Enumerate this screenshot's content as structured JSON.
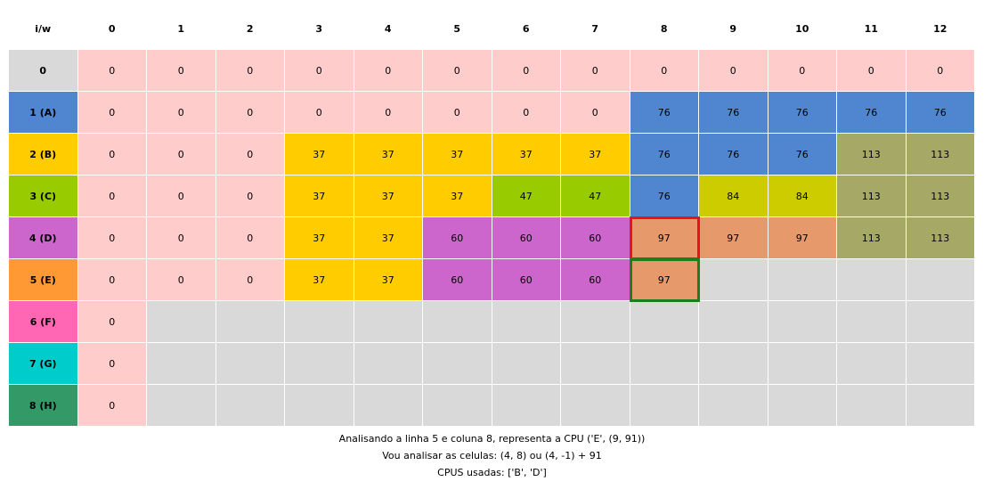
{
  "corner_label": "i/w",
  "col_headers": [
    "0",
    "1",
    "2",
    "3",
    "4",
    "5",
    "6",
    "7",
    "8",
    "9",
    "10",
    "11",
    "12"
  ],
  "row_labels": [
    "0",
    "1 (A)",
    "2 (B)",
    "3 (C)",
    "4 (D)",
    "5 (E)",
    "6 (F)",
    "7 (G)",
    "8 (H)"
  ],
  "row_label_colors": [
    "#d9d9d9",
    "#4f86cf",
    "#ffcc00",
    "#99cc00",
    "#cc66cc",
    "#ff9933",
    "#ff66b3",
    "#00cccc",
    "#339966"
  ],
  "rows": [
    {
      "values": [
        "0",
        "0",
        "0",
        "0",
        "0",
        "0",
        "0",
        "0",
        "0",
        "0",
        "0",
        "0",
        "0"
      ],
      "colors": [
        "#ffcccc",
        "#ffcccc",
        "#ffcccc",
        "#ffcccc",
        "#ffcccc",
        "#ffcccc",
        "#ffcccc",
        "#ffcccc",
        "#ffcccc",
        "#ffcccc",
        "#ffcccc",
        "#ffcccc",
        "#ffcccc"
      ]
    },
    {
      "values": [
        "0",
        "0",
        "0",
        "0",
        "0",
        "0",
        "0",
        "0",
        "76",
        "76",
        "76",
        "76",
        "76"
      ],
      "colors": [
        "#ffcccc",
        "#ffcccc",
        "#ffcccc",
        "#ffcccc",
        "#ffcccc",
        "#ffcccc",
        "#ffcccc",
        "#ffcccc",
        "#4f86cf",
        "#4f86cf",
        "#4f86cf",
        "#4f86cf",
        "#4f86cf"
      ]
    },
    {
      "values": [
        "0",
        "0",
        "0",
        "37",
        "37",
        "37",
        "37",
        "37",
        "76",
        "76",
        "76",
        "113",
        "113"
      ],
      "colors": [
        "#ffcccc",
        "#ffcccc",
        "#ffcccc",
        "#ffcc00",
        "#ffcc00",
        "#ffcc00",
        "#ffcc00",
        "#ffcc00",
        "#4f86cf",
        "#4f86cf",
        "#4f86cf",
        "#a6a866",
        "#a6a866"
      ]
    },
    {
      "values": [
        "0",
        "0",
        "0",
        "37",
        "37",
        "37",
        "47",
        "47",
        "76",
        "84",
        "84",
        "113",
        "113"
      ],
      "colors": [
        "#ffcccc",
        "#ffcccc",
        "#ffcccc",
        "#ffcc00",
        "#ffcc00",
        "#ffcc00",
        "#99cc00",
        "#99cc00",
        "#4f86cf",
        "#cccc00",
        "#cccc00",
        "#a6a866",
        "#a6a866"
      ]
    },
    {
      "values": [
        "0",
        "0",
        "0",
        "37",
        "37",
        "60",
        "60",
        "60",
        "97",
        "97",
        "97",
        "113",
        "113"
      ],
      "colors": [
        "#ffcccc",
        "#ffcccc",
        "#ffcccc",
        "#ffcc00",
        "#ffcc00",
        "#cc66cc",
        "#cc66cc",
        "#cc66cc",
        "#e6996b",
        "#e6996b",
        "#e6996b",
        "#a6a866",
        "#a6a866"
      ]
    },
    {
      "values": [
        "0",
        "0",
        "0",
        "37",
        "37",
        "60",
        "60",
        "60",
        "97",
        "",
        "",
        "",
        ""
      ],
      "colors": [
        "#ffcccc",
        "#ffcccc",
        "#ffcccc",
        "#ffcc00",
        "#ffcc00",
        "#cc66cc",
        "#cc66cc",
        "#cc66cc",
        "#e6996b",
        "#d9d9d9",
        "#d9d9d9",
        "#d9d9d9",
        "#d9d9d9"
      ]
    },
    {
      "values": [
        "0",
        "",
        "",
        "",
        "",
        "",
        "",
        "",
        "",
        "",
        "",
        "",
        ""
      ],
      "colors": [
        "#ffcccc",
        "#d9d9d9",
        "#d9d9d9",
        "#d9d9d9",
        "#d9d9d9",
        "#d9d9d9",
        "#d9d9d9",
        "#d9d9d9",
        "#d9d9d9",
        "#d9d9d9",
        "#d9d9d9",
        "#d9d9d9",
        "#d9d9d9"
      ]
    },
    {
      "values": [
        "0",
        "",
        "",
        "",
        "",
        "",
        "",
        "",
        "",
        "",
        "",
        "",
        ""
      ],
      "colors": [
        "#ffcccc",
        "#d9d9d9",
        "#d9d9d9",
        "#d9d9d9",
        "#d9d9d9",
        "#d9d9d9",
        "#d9d9d9",
        "#d9d9d9",
        "#d9d9d9",
        "#d9d9d9",
        "#d9d9d9",
        "#d9d9d9",
        "#d9d9d9"
      ]
    },
    {
      "values": [
        "0",
        "",
        "",
        "",
        "",
        "",
        "",
        "",
        "",
        "",
        "",
        "",
        ""
      ],
      "colors": [
        "#ffcccc",
        "#d9d9d9",
        "#d9d9d9",
        "#d9d9d9",
        "#d9d9d9",
        "#d9d9d9",
        "#d9d9d9",
        "#d9d9d9",
        "#d9d9d9",
        "#d9d9d9",
        "#d9d9d9",
        "#d9d9d9",
        "#d9d9d9"
      ]
    }
  ],
  "highlights": {
    "source_cell": {
      "row": 4,
      "col": 8,
      "color": "#e8141c"
    },
    "current_cell": {
      "row": 5,
      "col": 8,
      "color": "#1e7d1e"
    }
  },
  "captions": [
    "Analisando a linha 5 e coluna 8, representa a CPU ('E', (9, 91))",
    "Vou analisar as celulas: (4, 8) ou (4, -1) + 91",
    "CPUS usadas: ['B', 'D']"
  ]
}
